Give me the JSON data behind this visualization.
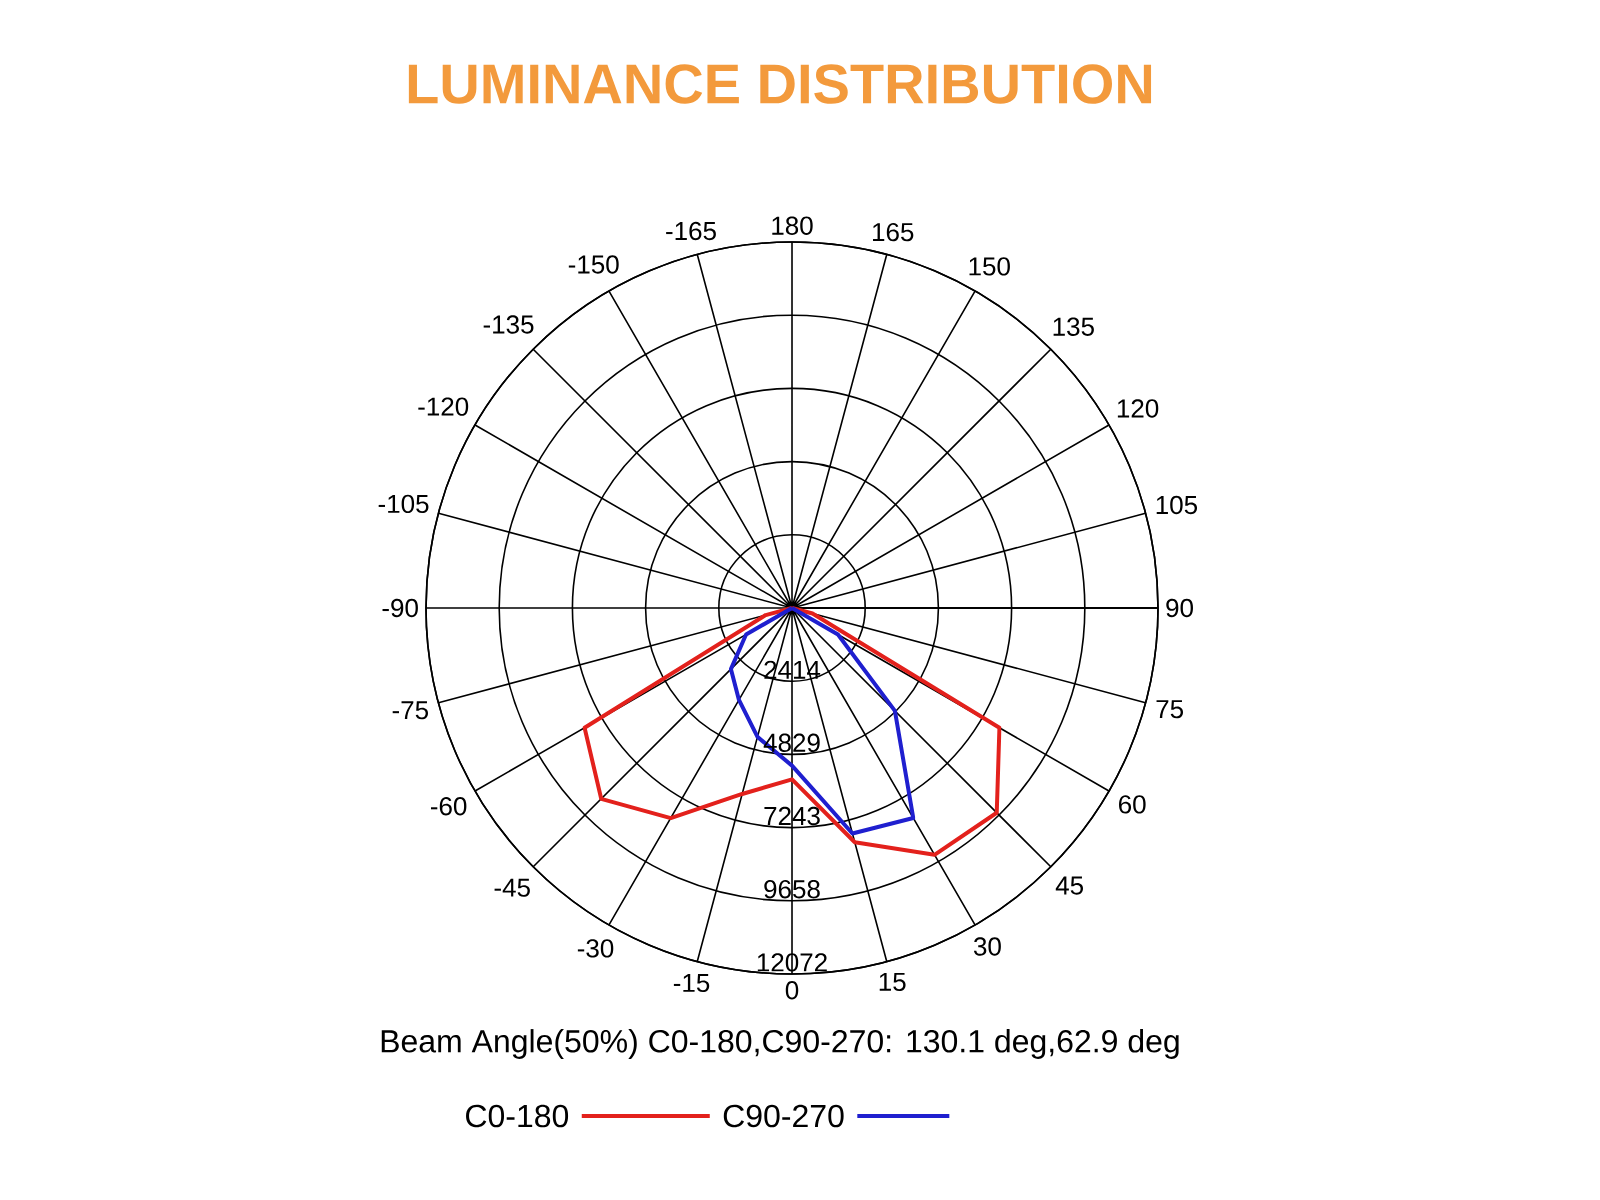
{
  "chart_data": {
    "type": "radar",
    "title": "LUMINANCE DISTRIBUTION",
    "categories": [
      "180",
      "165",
      "150",
      "135",
      "120",
      "105",
      "90",
      "75",
      "60",
      "45",
      "30",
      "15",
      "0",
      "-15",
      "-30",
      "-45",
      "-60",
      "-75",
      "-90",
      "-105",
      "-120",
      "-135",
      "-150",
      "-165"
    ],
    "series": [
      {
        "name": "C0-180",
        "color": "#e3211c",
        "values": [
          0,
          0,
          0,
          0,
          0,
          0,
          0,
          700,
          7900,
          9550,
          9400,
          8000,
          5650,
          6350,
          8000,
          8900,
          7900,
          900,
          0,
          0,
          0,
          0,
          0,
          0
        ]
      },
      {
        "name": "C90-270",
        "color": "#1f1fcf",
        "values": [
          0,
          0,
          0,
          0,
          0,
          0,
          0,
          0,
          1750,
          4800,
          8000,
          7700,
          5200,
          4400,
          3500,
          2850,
          1750,
          0,
          0,
          0,
          0,
          0,
          0,
          0
        ]
      }
    ],
    "ylim": [
      0,
      12072
    ],
    "yticks": [
      2414,
      4829,
      7243,
      9658,
      12072
    ],
    "grid": true,
    "legend": "bottom",
    "annotations": [
      "Beam Angle(50%) C0-180,C90-270: 130.1 deg,62.9 deg"
    ]
  }
}
